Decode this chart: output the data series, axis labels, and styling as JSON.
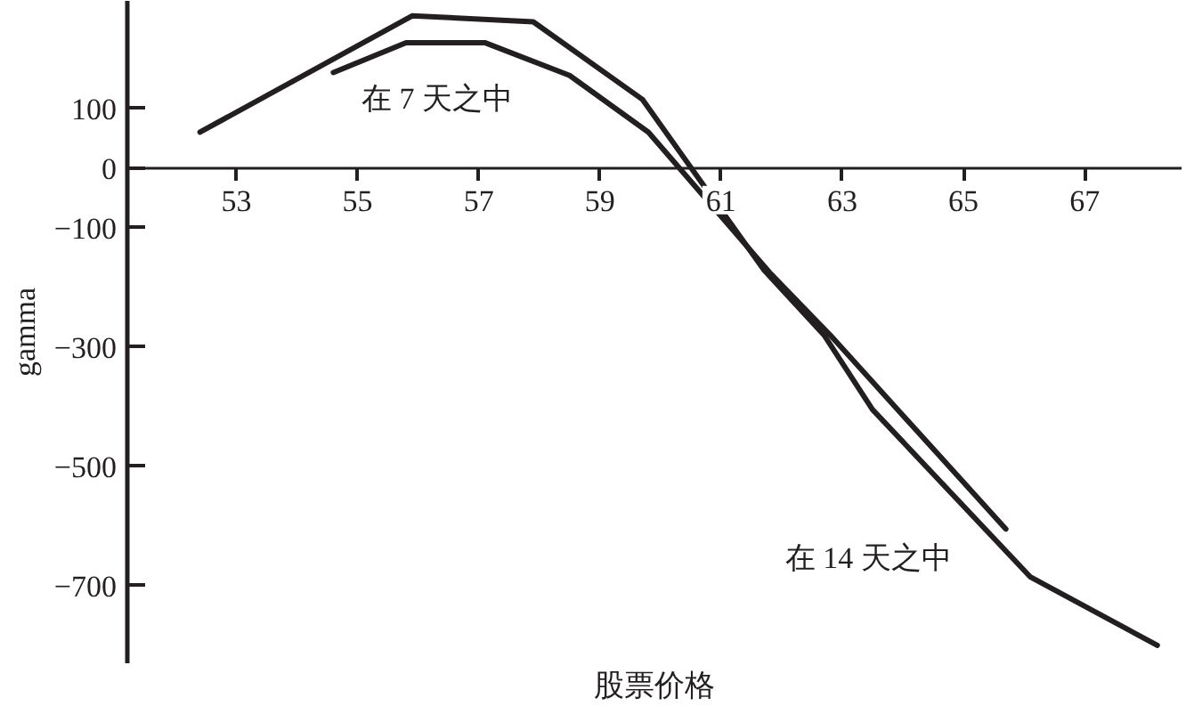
{
  "chart_data": {
    "type": "line",
    "xlabel": "股票价格",
    "ylabel": "gamma",
    "xlim": [
      51.2,
      68.6
    ],
    "ylim": [
      -830,
      280
    ],
    "xticks": [
      53,
      55,
      57,
      59,
      61,
      63,
      65,
      67
    ],
    "yticks": [
      100,
      0,
      {
        "value": -100,
        "label": "−100"
      },
      {
        "value": -300,
        "label": "−300"
      },
      {
        "value": -500,
        "label": "−500"
      },
      {
        "value": -700,
        "label": "−700"
      }
    ],
    "series": [
      {
        "color": "#231f20",
        "x": [
          52.4,
          55.9,
          57.9,
          59.7,
          61.7,
          62.7,
          63.5,
          66.1,
          68.2
        ],
        "values": [
          60,
          255,
          245,
          115,
          -170,
          -280,
          -405,
          -685,
          -800
        ]
      },
      {
        "color": "#231f20",
        "x": [
          54.6,
          55.8,
          57.1,
          58.5,
          59.8,
          61.8,
          62.8,
          65.7
        ],
        "values": [
          160,
          210,
          210,
          155,
          60,
          -175,
          -280,
          -605
        ]
      }
    ],
    "annotations": [
      "在 7 天之中",
      "在 14 天之中"
    ],
    "grid": false,
    "marker": "none",
    "line_style": "solid"
  }
}
